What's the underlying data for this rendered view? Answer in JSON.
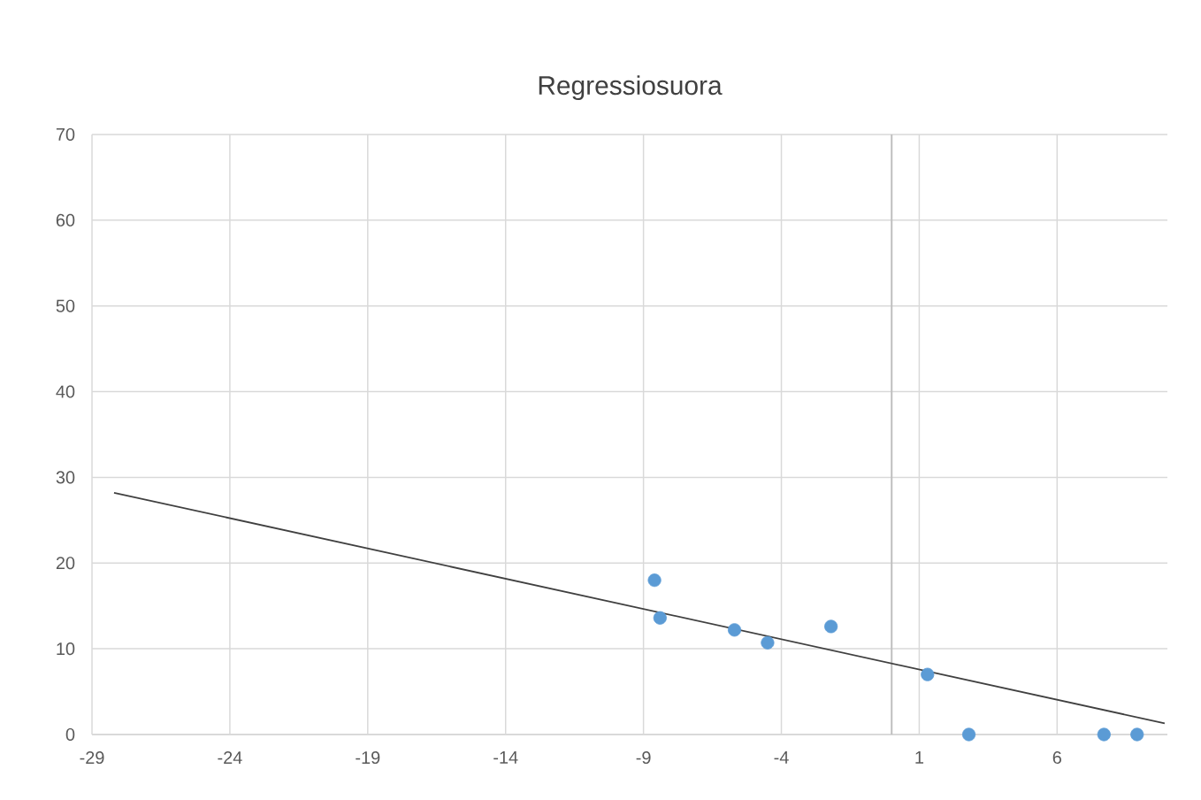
{
  "chart_data": {
    "type": "scatter",
    "title": "Regressiosuora",
    "series": [
      {
        "marker": "circle",
        "color": "#5b9bd5",
        "x": [
          -8.6,
          -8.4,
          -5.7,
          -4.5,
          -2.2,
          1.3,
          2.8,
          7.7,
          8.9
        ],
        "values": [
          18.0,
          13.6,
          12.2,
          10.7,
          12.6,
          7.0,
          0,
          0,
          0
        ]
      },
      {
        "type": "line",
        "marker": "none",
        "line_style": "solid",
        "color": "#404040",
        "x": [
          -28.2,
          9.9
        ],
        "values": [
          28.2,
          1.3
        ]
      }
    ],
    "xlim": [
      -29,
      10
    ],
    "ylim": [
      0,
      70
    ],
    "xticks": [
      -29,
      -24,
      -19,
      -14,
      -9,
      -4,
      1,
      6
    ],
    "yticks": [
      0,
      10,
      20,
      30,
      40,
      50,
      60,
      70
    ],
    "ref_lines": [
      {
        "axis": "x",
        "value": 0,
        "color": "#bfbfbf"
      }
    ],
    "grid": true
  }
}
